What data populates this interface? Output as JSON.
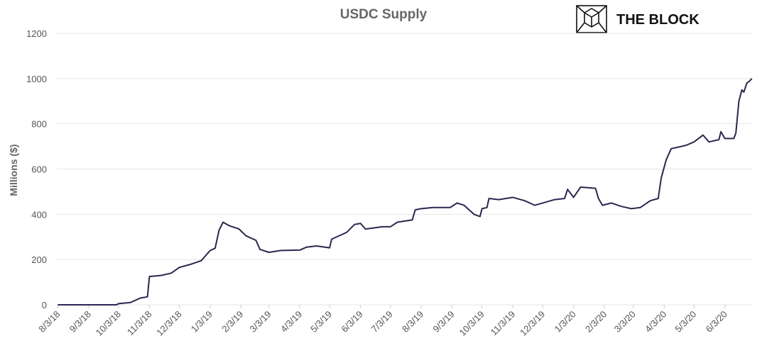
{
  "brand": "THE BLOCK",
  "chart_data": {
    "type": "line",
    "title": "USDC Supply",
    "y_label": "Millions ($)",
    "x": [
      "2018-08-03",
      "2018-10-01",
      "2018-10-03",
      "2018-10-15",
      "2018-10-25",
      "2018-11-01",
      "2018-11-03",
      "2018-11-15",
      "2018-11-25",
      "2018-12-03",
      "2018-12-15",
      "2018-12-25",
      "2019-01-03",
      "2019-01-08",
      "2019-01-12",
      "2019-01-16",
      "2019-01-22",
      "2019-02-01",
      "2019-02-08",
      "2019-02-18",
      "2019-02-22",
      "2019-03-03",
      "2019-03-15",
      "2019-04-03",
      "2019-04-10",
      "2019-04-20",
      "2019-05-03",
      "2019-05-05",
      "2019-05-20",
      "2019-05-28",
      "2019-06-03",
      "2019-06-08",
      "2019-06-25",
      "2019-07-03",
      "2019-07-10",
      "2019-07-25",
      "2019-07-28",
      "2019-08-03",
      "2019-08-15",
      "2019-09-01",
      "2019-09-08",
      "2019-09-15",
      "2019-09-25",
      "2019-10-01",
      "2019-10-03",
      "2019-10-08",
      "2019-10-10",
      "2019-10-20",
      "2019-11-03",
      "2019-11-15",
      "2019-11-25",
      "2019-12-03",
      "2019-12-15",
      "2019-12-25",
      "2019-12-28",
      "2020-01-03",
      "2020-01-10",
      "2020-01-25",
      "2020-01-28",
      "2020-02-01",
      "2020-02-10",
      "2020-02-20",
      "2020-03-01",
      "2020-03-10",
      "2020-03-20",
      "2020-03-28",
      "2020-03-31",
      "2020-04-05",
      "2020-04-10",
      "2020-04-25",
      "2020-05-03",
      "2020-05-12",
      "2020-05-18",
      "2020-05-28",
      "2020-05-30",
      "2020-06-03",
      "2020-06-12",
      "2020-06-14",
      "2020-06-17",
      "2020-06-20",
      "2020-06-22",
      "2020-06-25",
      "2020-06-28",
      "2020-06-30"
    ],
    "series": [
      {
        "name": "USDC Supply",
        "color": "#2b2750",
        "values": [
          0,
          0,
          5,
          10,
          30,
          35,
          125,
          130,
          140,
          165,
          180,
          195,
          240,
          250,
          330,
          365,
          350,
          335,
          305,
          285,
          245,
          232,
          240,
          242,
          255,
          260,
          252,
          290,
          320,
          355,
          360,
          335,
          345,
          345,
          365,
          375,
          420,
          425,
          430,
          430,
          450,
          440,
          400,
          390,
          425,
          430,
          470,
          465,
          475,
          460,
          440,
          450,
          465,
          470,
          510,
          475,
          520,
          515,
          470,
          440,
          450,
          435,
          425,
          430,
          460,
          470,
          560,
          640,
          690,
          705,
          720,
          750,
          720,
          730,
          765,
          735,
          735,
          760,
          900,
          950,
          940,
          980,
          990,
          1000
        ]
      }
    ],
    "xlim": [
      "2018-08-02",
      "2020-07-01"
    ],
    "xticks": [
      {
        "value": "2018-08-03",
        "label": "8/3/18"
      },
      {
        "value": "2018-09-03",
        "label": "9/3/18"
      },
      {
        "value": "2018-10-03",
        "label": "10/3/18"
      },
      {
        "value": "2018-11-03",
        "label": "11/3/18"
      },
      {
        "value": "2018-12-03",
        "label": "12/3/18"
      },
      {
        "value": "2019-01-03",
        "label": "1/3/19"
      },
      {
        "value": "2019-02-03",
        "label": "2/3/19"
      },
      {
        "value": "2019-03-03",
        "label": "3/3/19"
      },
      {
        "value": "2019-04-03",
        "label": "4/3/19"
      },
      {
        "value": "2019-05-03",
        "label": "5/3/19"
      },
      {
        "value": "2019-06-03",
        "label": "6/3/19"
      },
      {
        "value": "2019-07-03",
        "label": "7/3/19"
      },
      {
        "value": "2019-08-03",
        "label": "8/3/19"
      },
      {
        "value": "2019-09-03",
        "label": "9/3/19"
      },
      {
        "value": "2019-10-03",
        "label": "10/3/19"
      },
      {
        "value": "2019-11-03",
        "label": "11/3/19"
      },
      {
        "value": "2019-12-03",
        "label": "12/3/19"
      },
      {
        "value": "2020-01-03",
        "label": "1/3/20"
      },
      {
        "value": "2020-02-03",
        "label": "2/3/20"
      },
      {
        "value": "2020-03-03",
        "label": "3/3/20"
      },
      {
        "value": "2020-04-03",
        "label": "4/3/20"
      },
      {
        "value": "2020-05-03",
        "label": "5/3/20"
      },
      {
        "value": "2020-06-03",
        "label": "6/3/20"
      }
    ],
    "ylim": [
      0,
      1200
    ],
    "yticks": [
      0,
      200,
      400,
      600,
      800,
      1000,
      1200
    ],
    "grid": true
  }
}
